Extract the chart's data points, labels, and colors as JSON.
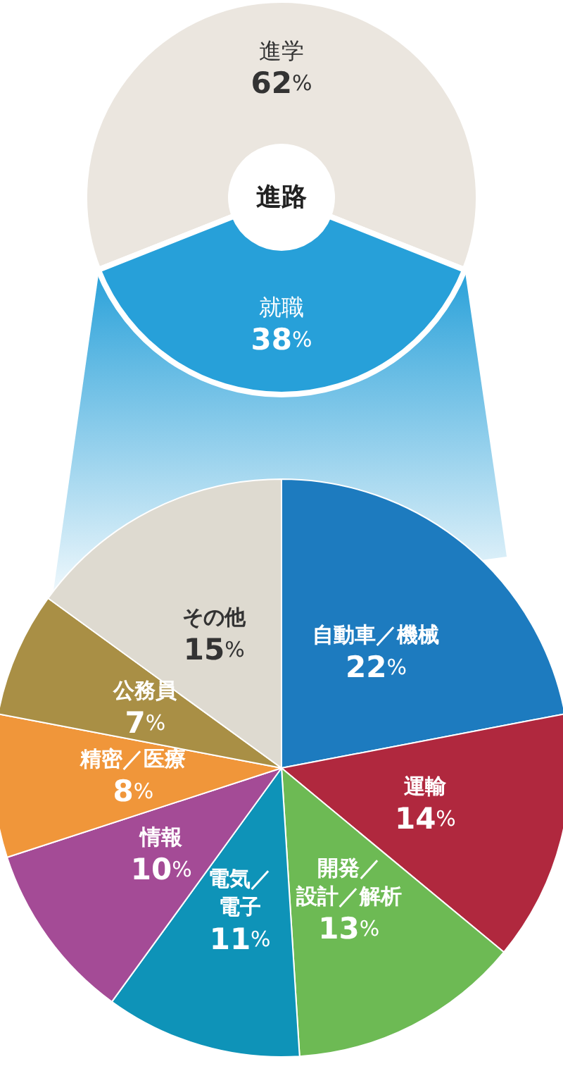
{
  "chart_data": [
    {
      "type": "donut",
      "title": "進路",
      "categories": [
        "進学",
        "就職"
      ],
      "values": [
        62,
        38
      ],
      "colors": [
        "#ebe6df",
        "#27a0d9"
      ],
      "value_labels": [
        "62%",
        "38%"
      ]
    },
    {
      "type": "pie",
      "categories": [
        "自動車／機械",
        "運輸",
        "開発／設計／解析",
        "電気／電子",
        "情報",
        "精密／医療",
        "公務員",
        "その他"
      ],
      "values": [
        22,
        14,
        13,
        11,
        10,
        8,
        7,
        15
      ],
      "colors": [
        "#1d7bbf",
        "#b0283e",
        "#6dba54",
        "#0e93b8",
        "#a44b96",
        "#f0963a",
        "#a98f45",
        "#dedad0"
      ],
      "value_labels": [
        "22%",
        "14%",
        "13%",
        "11%",
        "10%",
        "8%",
        "7%",
        "15%"
      ]
    }
  ]
}
